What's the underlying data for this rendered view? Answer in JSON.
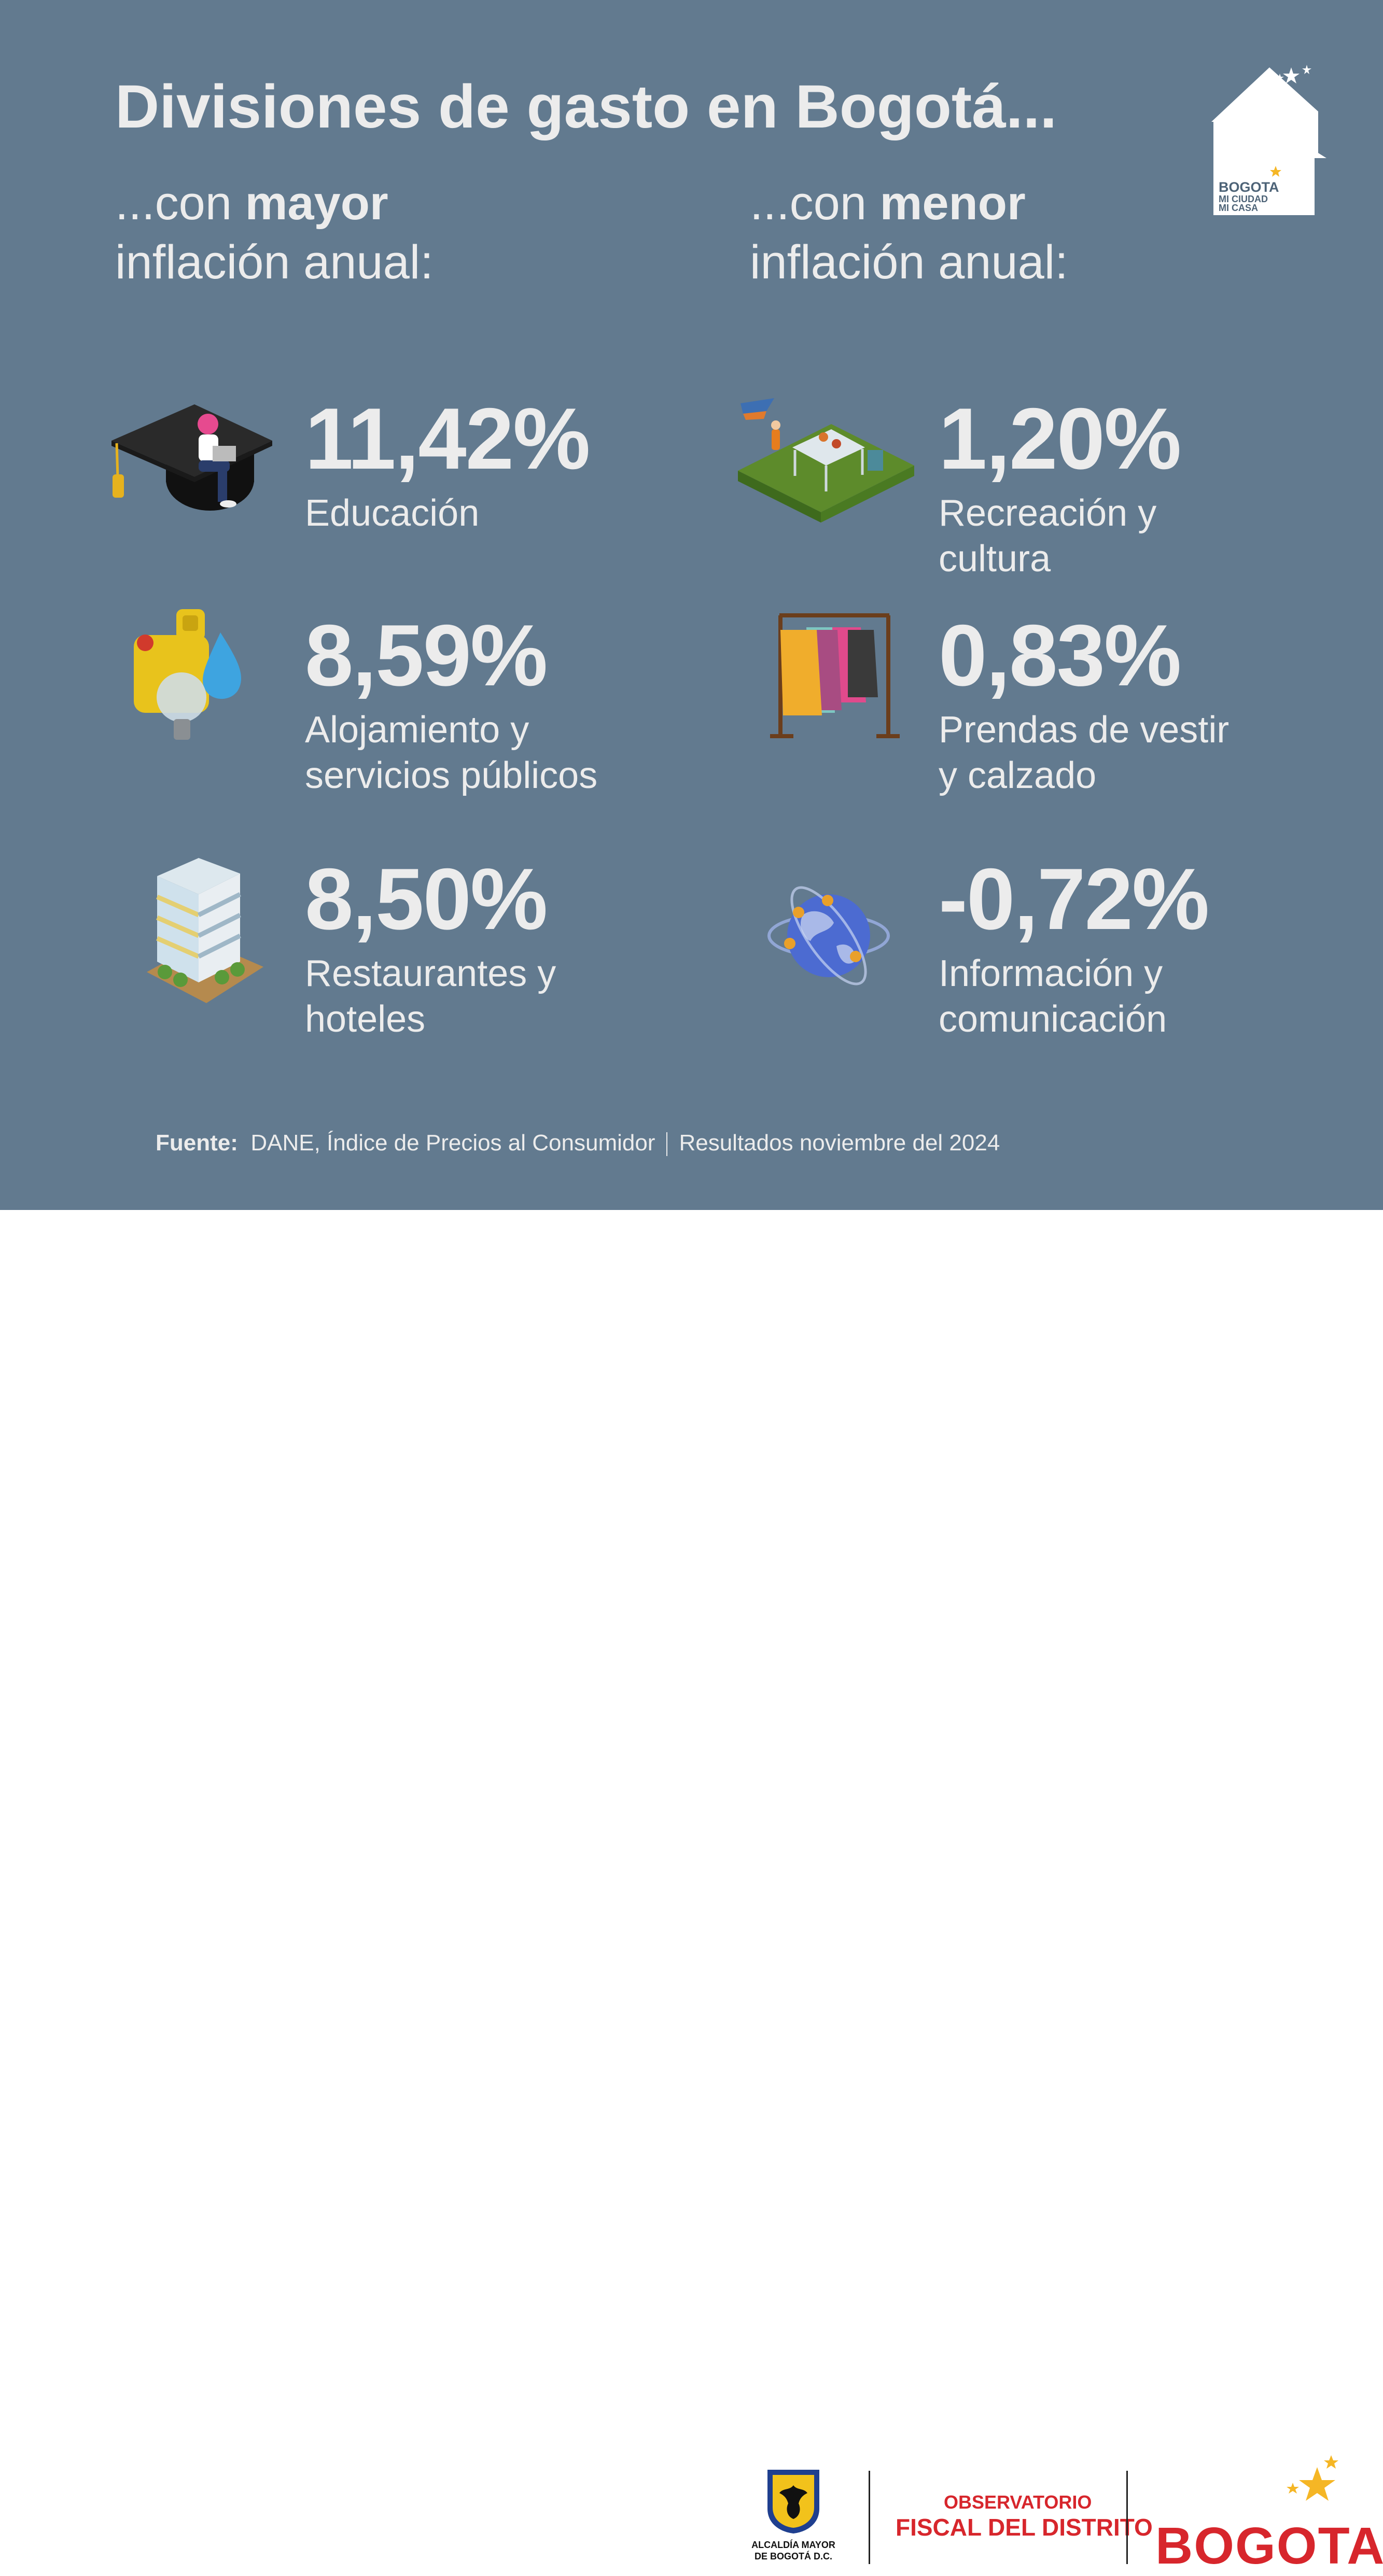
{
  "title": "Divisiones de gasto en Bogotá...",
  "left_heading": {
    "prefix": "...con ",
    "bold": "mayor",
    "line2": "inflación anual:"
  },
  "right_heading": {
    "prefix": "...con ",
    "bold": "menor",
    "line2": "inflación anual:"
  },
  "mayor": [
    {
      "value": "11,42%",
      "label_1": "Educación",
      "label_2": "",
      "icon": "graduation-cap-icon"
    },
    {
      "value": "8,59%",
      "label_1": "Alojamiento y",
      "label_2": "servicios públicos",
      "icon": "utilities-icon"
    },
    {
      "value": "8,50%",
      "label_1": "Restaurantes y",
      "label_2": "hoteles",
      "icon": "hotel-icon"
    }
  ],
  "menor": [
    {
      "value": "1,20%",
      "label_1": "Recreación y",
      "label_2": "cultura",
      "icon": "picnic-park-icon"
    },
    {
      "value": "0,83%",
      "label_1": "Prendas de vestir",
      "label_2": "y calzado",
      "icon": "clothes-rack-icon"
    },
    {
      "value": "-0,72%",
      "label_1": "Información y",
      "label_2": "comunicación",
      "icon": "globe-network-icon"
    }
  ],
  "source": {
    "label": "Fuente:",
    "text": "DANE, Índice de Precios al Consumidor",
    "period": "Resultados noviembre del 2024"
  },
  "house_logo": {
    "line1": "BOGOTA",
    "line2": "MI CIUDAD",
    "line3": "MI CASA"
  },
  "footer": {
    "alcaldia_1": "ALCALDÍA MAYOR",
    "alcaldia_2": "DE BOGOTÁ D.C.",
    "observatorio_1": "OBSERVATORIO",
    "observatorio_2": "FISCAL DEL DISTRITO",
    "bogota": "BOGOTA"
  },
  "colors": {
    "background": "#627a8f",
    "text": "#ececec",
    "brand_red": "#d7262c",
    "star_yellow": "#f5b625"
  }
}
